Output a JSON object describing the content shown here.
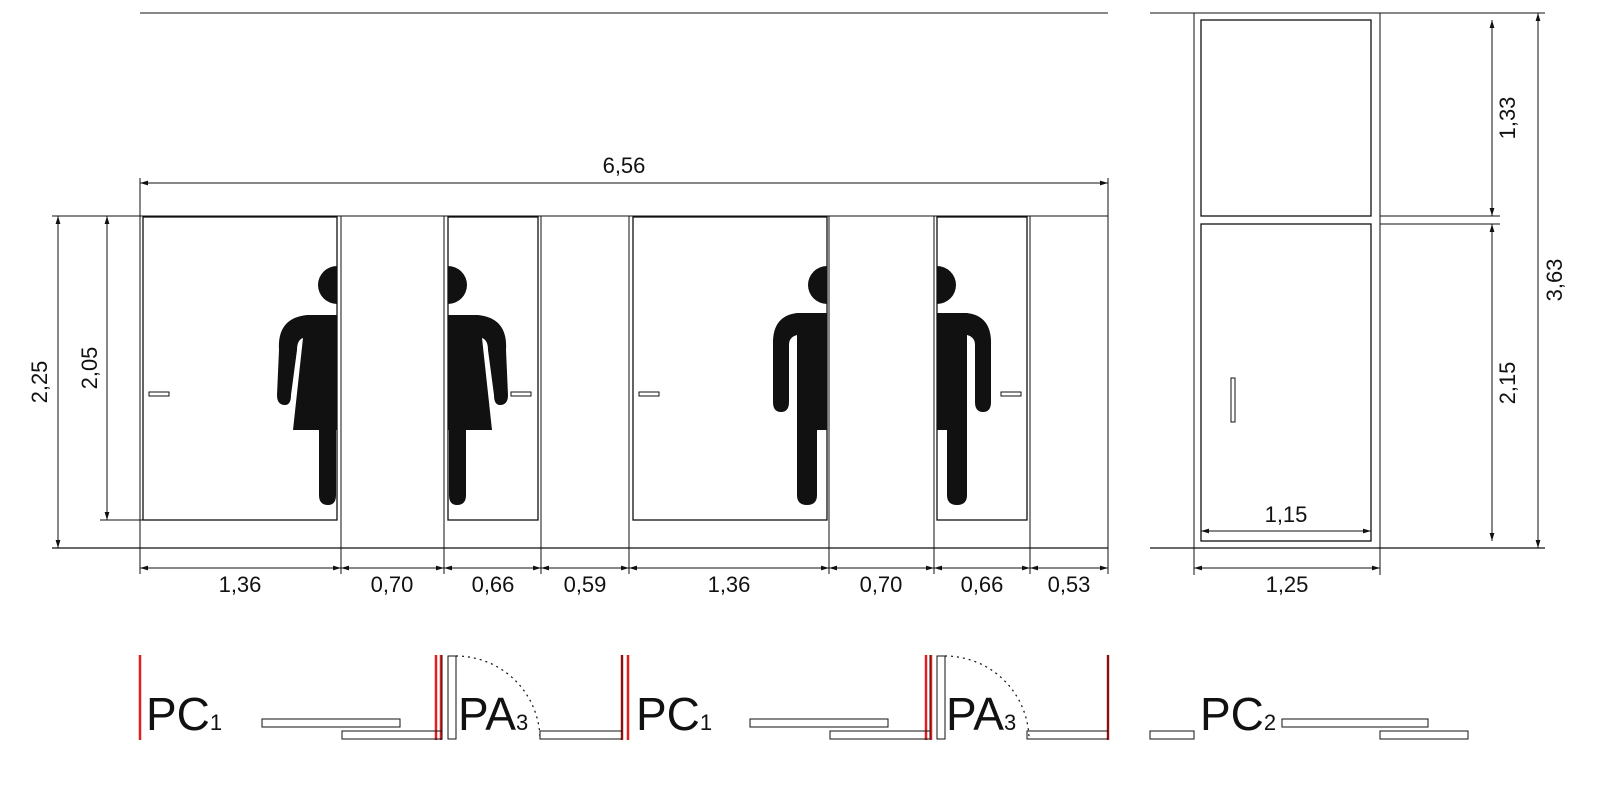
{
  "dimensions": {
    "overall_width": "6,56",
    "segments": [
      "1,36",
      "0,70",
      "0,66",
      "0,59",
      "1,36",
      "0,70",
      "0,66",
      "0,53"
    ],
    "height_total": "2,25",
    "door_height": "2,05",
    "side_upper": "1,33",
    "side_lower": "2,15",
    "side_total": "3,63",
    "side_door_width": "1,15",
    "side_width": "1,25"
  },
  "door_labels": [
    {
      "main": "PC",
      "sub": "1"
    },
    {
      "main": "PA",
      "sub": "3"
    },
    {
      "main": "PC",
      "sub": "1"
    },
    {
      "main": "PA",
      "sub": "3"
    },
    {
      "main": "PC",
      "sub": "2"
    }
  ],
  "icons": [
    "female-restroom-icon",
    "female-restroom-icon",
    "male-restroom-icon",
    "male-restroom-icon"
  ],
  "colors": {
    "line": "#111111",
    "accent": "#e02020"
  }
}
